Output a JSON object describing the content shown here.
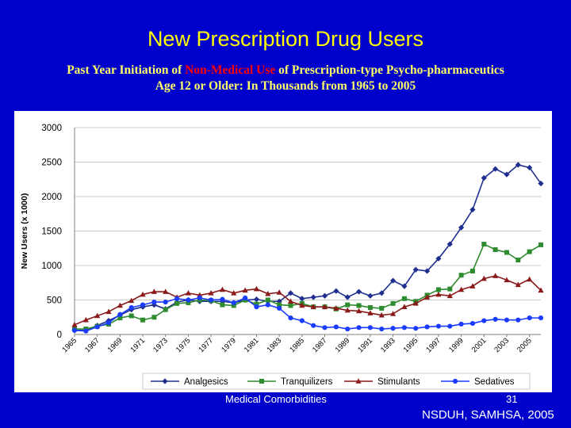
{
  "slide": {
    "title": "New Prescription Drug Users",
    "subtitle_line1_a": "Past Year Initiation of ",
    "subtitle_line1_red": "Non-Medical Use",
    "subtitle_line1_b": " of Prescription-type Psycho-pharmaceutics",
    "subtitle_line2": "Age 12  or Older: In Thousands from 1965 to 2005",
    "footer_left": "Medical Comorbidities",
    "page_number": "31",
    "source": "NSDUH, SAMHSA, 2005"
  },
  "colors": {
    "background": "#0000cc",
    "title": "#ffff00",
    "subtitle": "#ffff66",
    "subtitle_highlight": "#ff0000"
  },
  "chart_data": {
    "type": "line",
    "ylabel": "New Users (x 1000)",
    "xlabel": "",
    "ylim": [
      0,
      3000
    ],
    "yticks": [
      0,
      500,
      1000,
      1500,
      2000,
      2500,
      3000
    ],
    "grid": "horizontal",
    "legend_position": "bottom",
    "x": [
      1965,
      1966,
      1967,
      1968,
      1969,
      1970,
      1971,
      1972,
      1973,
      1974,
      1975,
      1976,
      1977,
      1978,
      1979,
      1980,
      1981,
      1982,
      1983,
      1984,
      1985,
      1986,
      1987,
      1988,
      1989,
      1990,
      1991,
      1992,
      1993,
      1994,
      1995,
      1996,
      1997,
      1998,
      1999,
      2000,
      2001,
      2002,
      2003,
      2004,
      2005,
      2006
    ],
    "xtick_labels": [
      "1965",
      "1967",
      "1969",
      "1971",
      "1973",
      "1975",
      "1977",
      "1979",
      "1981",
      "1983",
      "1985",
      "1987",
      "1989",
      "1991",
      "1993",
      "1995",
      "1997",
      "1999",
      "2001",
      "2003",
      "2005"
    ],
    "series": [
      {
        "name": "Analgesics",
        "color": "#1f2f8f",
        "marker": "diamond",
        "values": [
          60,
          60,
          130,
          200,
          280,
          360,
          400,
          430,
          370,
          470,
          500,
          480,
          480,
          480,
          460,
          500,
          510,
          480,
          480,
          600,
          520,
          540,
          560,
          630,
          540,
          620,
          560,
          600,
          780,
          700,
          940,
          920,
          1100,
          1310,
          1550,
          1810,
          2270,
          2400,
          2320,
          2460,
          2420,
          2190
        ]
      },
      {
        "name": "Tranquilizers",
        "color": "#2e8b2e",
        "marker": "square",
        "values": [
          80,
          80,
          120,
          150,
          240,
          270,
          210,
          250,
          360,
          450,
          460,
          500,
          490,
          430,
          420,
          500,
          440,
          500,
          430,
          420,
          450,
          400,
          400,
          370,
          430,
          420,
          390,
          380,
          450,
          520,
          480,
          570,
          650,
          660,
          860,
          920,
          1310,
          1230,
          1190,
          1080,
          1200,
          1300
        ]
      },
      {
        "name": "Stimulants",
        "color": "#8b1a1a",
        "marker": "triangle",
        "values": [
          140,
          210,
          270,
          330,
          420,
          490,
          580,
          620,
          620,
          540,
          600,
          570,
          600,
          650,
          600,
          640,
          660,
          590,
          610,
          480,
          420,
          400,
          400,
          380,
          350,
          340,
          310,
          280,
          300,
          400,
          450,
          540,
          580,
          560,
          650,
          700,
          810,
          850,
          790,
          720,
          800,
          640
        ]
      },
      {
        "name": "Sedatives",
        "color": "#1a3cff",
        "marker": "circle",
        "values": [
          60,
          50,
          110,
          170,
          290,
          390,
          430,
          470,
          470,
          520,
          500,
          530,
          500,
          510,
          460,
          530,
          400,
          430,
          380,
          240,
          200,
          130,
          100,
          110,
          80,
          100,
          100,
          80,
          90,
          100,
          90,
          110,
          120,
          120,
          150,
          160,
          200,
          220,
          210,
          210,
          240,
          240
        ]
      }
    ]
  }
}
